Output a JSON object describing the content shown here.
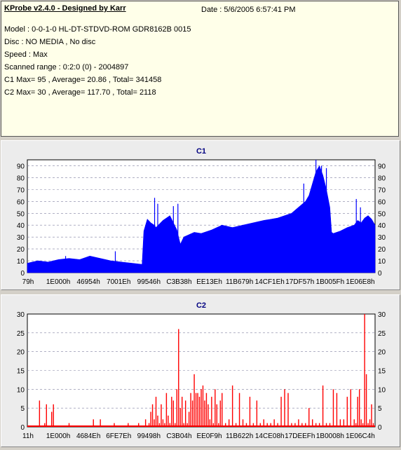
{
  "info": {
    "title": "KProbe v2.4.0 - Designed by Karr",
    "date": "Date : 5/6/2005 6:57:41 PM",
    "model": "Model : 0-0-1-0 HL-DT-STDVD-ROM GDR8162B 0015",
    "disc": "Disc : NO MEDIA , No disc",
    "speed": "Speed : Max",
    "scanned_range": "Scanned range : 0:2:0 (0) - 2004897",
    "c1_summary": "C1 Max= 95 , Average= 20.86 , Total= 341458",
    "c2_summary": "C2 Max= 30 , Average= 117.70 , Total= 2118"
  },
  "chart_data": [
    {
      "type": "area",
      "title": "C1",
      "color": "#0000ff",
      "ylim": [
        0,
        95
      ],
      "yticks": [
        0,
        10,
        20,
        30,
        40,
        50,
        60,
        70,
        80,
        90
      ],
      "grid": true,
      "x_tick_labels": [
        "79h",
        "1E000h",
        "46954h",
        "7001Eh",
        "99546h",
        "C3B38h",
        "EE13Eh",
        "11B679h",
        "14CF1Eh",
        "17DF57h",
        "1B005Fh",
        "1E06E8h"
      ],
      "series": [
        {
          "x": [
            0,
            0.03,
            0.06,
            0.09,
            0.12,
            0.15,
            0.18,
            0.21,
            0.24,
            0.27,
            0.3,
            0.33,
            0.335,
            0.345,
            0.355,
            0.365,
            0.37,
            0.39,
            0.41,
            0.43,
            0.44,
            0.45,
            0.48,
            0.5,
            0.53,
            0.56,
            0.59,
            0.62,
            0.65,
            0.68,
            0.7,
            0.72,
            0.74,
            0.76,
            0.78,
            0.8,
            0.81,
            0.82,
            0.83,
            0.84,
            0.85,
            0.86,
            0.87,
            0.875,
            0.88,
            0.9,
            0.92,
            0.94,
            0.95,
            0.96,
            0.97,
            0.98,
            0.99,
            1.0
          ],
          "values": [
            8,
            10,
            9,
            11,
            12,
            11,
            14,
            12,
            10,
            9,
            8,
            7,
            35,
            45,
            42,
            40,
            38,
            44,
            48,
            36,
            24,
            30,
            34,
            33,
            36,
            40,
            38,
            40,
            42,
            44,
            45,
            46,
            48,
            50,
            55,
            60,
            65,
            75,
            85,
            90,
            82,
            70,
            55,
            34,
            33,
            35,
            38,
            40,
            44,
            42,
            46,
            48,
            45,
            40
          ],
          "peaks": [
            {
              "x": 0.366,
              "y": 63
            },
            {
              "x": 0.375,
              "y": 58
            },
            {
              "x": 0.42,
              "y": 56
            },
            {
              "x": 0.433,
              "y": 58
            },
            {
              "x": 0.253,
              "y": 18
            },
            {
              "x": 0.11,
              "y": 14
            },
            {
              "x": 0.795,
              "y": 75
            },
            {
              "x": 0.83,
              "y": 95
            },
            {
              "x": 0.846,
              "y": 90
            },
            {
              "x": 0.86,
              "y": 88
            },
            {
              "x": 0.946,
              "y": 62
            },
            {
              "x": 0.958,
              "y": 55
            }
          ]
        }
      ]
    },
    {
      "type": "bar",
      "title": "C2",
      "color": "#ff0000",
      "ylim": [
        0,
        30
      ],
      "yticks": [
        0,
        5,
        10,
        15,
        20,
        25,
        30
      ],
      "grid": true,
      "x_tick_labels": [
        "11h",
        "1E000h",
        "4684Eh",
        "6FE7Eh",
        "99498h",
        "C3B04h",
        "EE0F9h",
        "11B622h",
        "14CE08h",
        "17DEEFh",
        "1B0008h",
        "1E06C4h"
      ],
      "series": [
        {
          "x": [
            0.035,
            0.05,
            0.055,
            0.07,
            0.075,
            0.12,
            0.19,
            0.21,
            0.25,
            0.29,
            0.32,
            0.34,
            0.35,
            0.355,
            0.36,
            0.365,
            0.37,
            0.375,
            0.38,
            0.385,
            0.39,
            0.395,
            0.4,
            0.405,
            0.41,
            0.415,
            0.42,
            0.425,
            0.43,
            0.435,
            0.44,
            0.445,
            0.45,
            0.455,
            0.46,
            0.465,
            0.47,
            0.475,
            0.48,
            0.485,
            0.49,
            0.495,
            0.5,
            0.505,
            0.51,
            0.515,
            0.52,
            0.525,
            0.53,
            0.535,
            0.54,
            0.545,
            0.55,
            0.555,
            0.56,
            0.57,
            0.58,
            0.59,
            0.6,
            0.61,
            0.62,
            0.63,
            0.64,
            0.65,
            0.66,
            0.67,
            0.68,
            0.69,
            0.7,
            0.71,
            0.72,
            0.73,
            0.74,
            0.75,
            0.76,
            0.77,
            0.78,
            0.79,
            0.8,
            0.81,
            0.82,
            0.83,
            0.84,
            0.85,
            0.86,
            0.87,
            0.88,
            0.89,
            0.9,
            0.91,
            0.92,
            0.93,
            0.94,
            0.945,
            0.95,
            0.955,
            0.96,
            0.965,
            0.97,
            0.975,
            0.98,
            0.985,
            0.99,
            0.995
          ],
          "values": [
            7,
            1,
            6,
            4,
            6,
            1,
            2,
            2,
            1,
            1,
            1,
            2,
            1,
            4,
            6,
            2,
            8,
            3,
            1,
            6,
            2,
            1,
            9,
            3,
            1,
            8,
            7,
            1,
            10,
            26,
            5,
            8,
            1,
            7,
            1,
            4,
            9,
            7,
            14,
            9,
            9,
            8,
            10,
            11,
            7,
            9,
            6,
            2,
            8,
            1,
            10,
            6,
            1,
            7,
            9,
            1,
            2,
            11,
            1,
            9,
            2,
            1,
            8,
            1,
            7,
            1,
            2,
            1,
            1,
            2,
            1,
            8,
            10,
            9,
            1,
            1,
            2,
            1,
            1,
            5,
            2,
            1,
            1,
            11,
            1,
            1,
            10,
            9,
            2,
            2,
            8,
            10,
            2,
            1,
            8,
            10,
            2,
            1,
            30,
            14,
            1,
            2,
            6,
            1
          ]
        }
      ]
    }
  ]
}
